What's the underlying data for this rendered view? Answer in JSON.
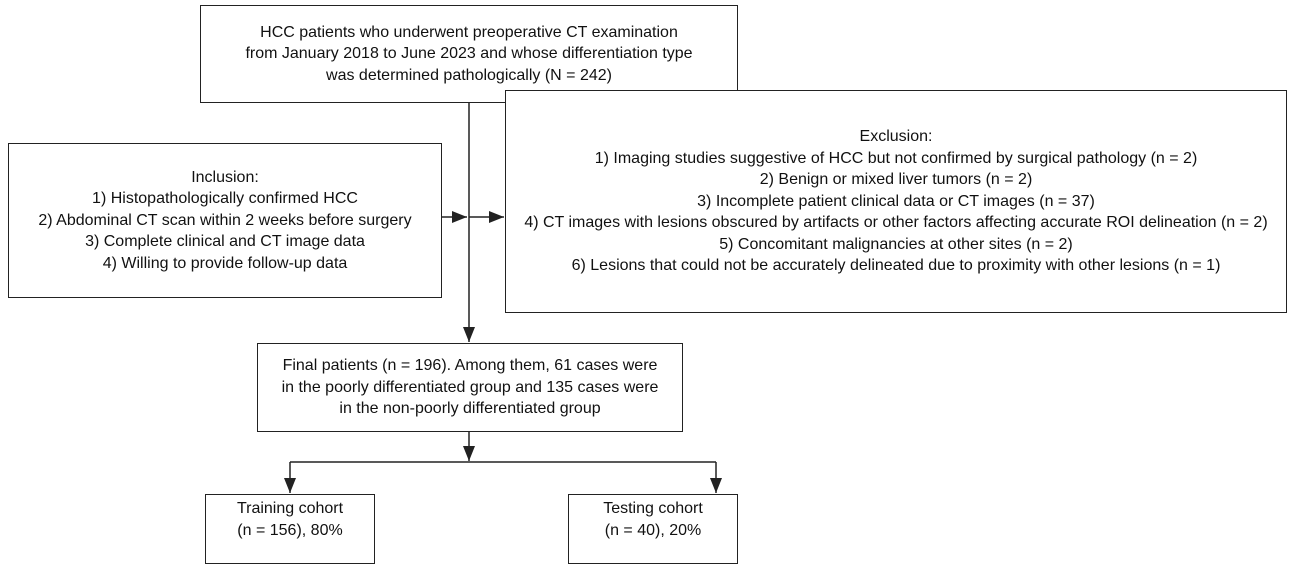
{
  "top_box": {
    "lines": [
      "HCC patients who underwent preoperative CT examination",
      "from January 2018 to June 2023 and whose differentiation type",
      "was determined pathologically (N = 242)"
    ]
  },
  "inclusion": {
    "title": "Inclusion:",
    "items": [
      "1) Histopathologically confirmed HCC",
      "2) Abdominal CT scan within 2 weeks before surgery",
      "3) Complete clinical and CT image data",
      "4) Willing to provide follow-up data"
    ]
  },
  "exclusion": {
    "title": "Exclusion:",
    "items": [
      "1) Imaging studies suggestive of HCC but not confirmed by surgical pathology (n = 2)",
      "2) Benign or mixed liver tumors (n = 2)",
      "3) Incomplete patient clinical data or CT images (n = 37)",
      "4) CT images with lesions obscured by artifacts or other factors affecting accurate ROI delineation (n = 2)",
      "5) Concomitant malignancies at other sites (n = 2)",
      "6) Lesions that could not be accurately delineated due to proximity with other lesions (n = 1)"
    ]
  },
  "final_box": {
    "lines": [
      "Final patients (n = 196). Among them, 61 cases were",
      "in the poorly differentiated group and 135 cases were",
      "in the non-poorly differentiated group"
    ]
  },
  "training_cohort": {
    "lines": [
      "Training cohort",
      "(n = 156), 80%"
    ]
  },
  "testing_cohort": {
    "lines": [
      "Testing cohort",
      "(n = 40), 20%"
    ]
  }
}
